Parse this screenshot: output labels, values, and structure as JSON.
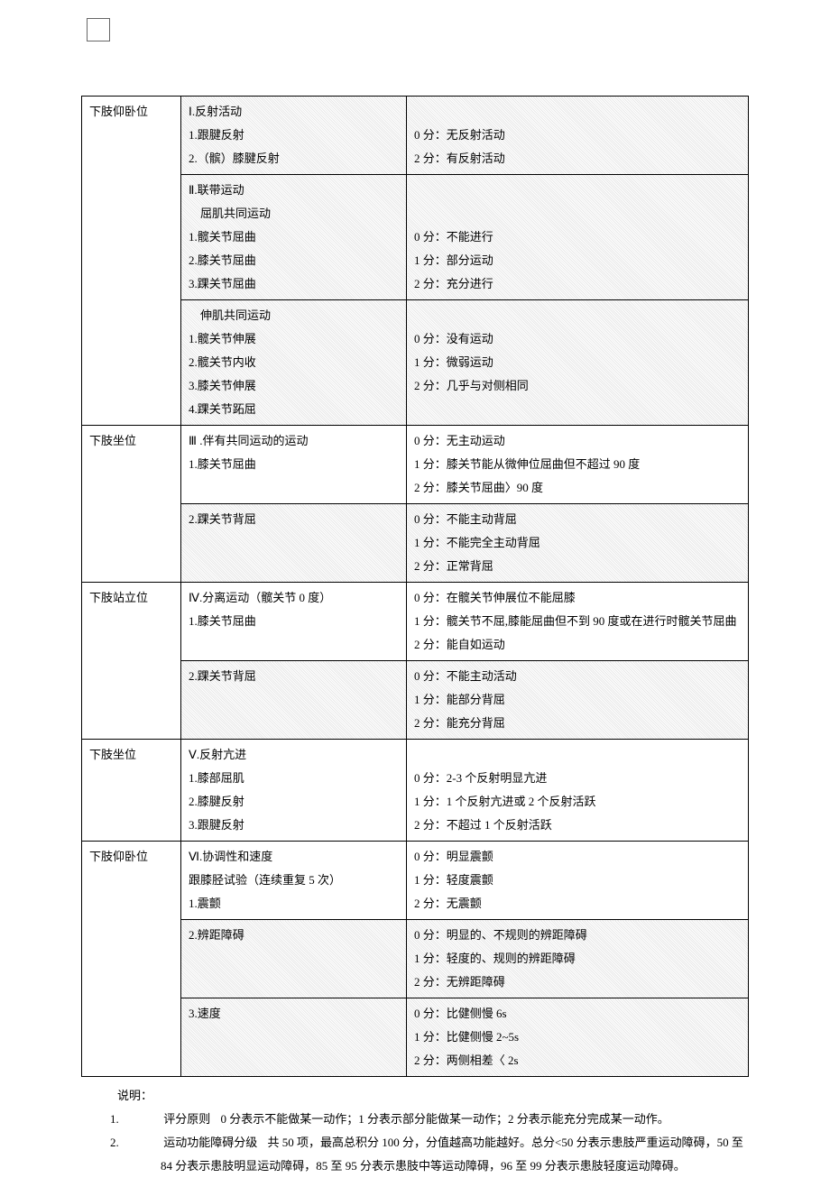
{
  "table": {
    "rows": [
      {
        "col1": "下肢仰卧位",
        "col2": "Ⅰ.反射活动\n1.跟腱反射\n2.（髌）膝腱反射",
        "col3": "\n0 分：无反射活动\n2 分：有反射活动",
        "hatched": true,
        "rowspan1": 3
      },
      {
        "col1": "",
        "col2": "Ⅱ.联带运动\n　屈肌共同运动\n1.髋关节屈曲\n2.膝关节屈曲\n3.踝关节屈曲",
        "col3": "\n\n0 分：不能进行\n1 分：部分运动\n2 分：充分进行",
        "hatched": true
      },
      {
        "col1": "",
        "col2": "　伸肌共同运动\n1.髋关节伸展\n2.髋关节内收\n3.膝关节伸展\n4.踝关节跖屈",
        "col3": "\n0 分：没有运动\n1 分：微弱运动\n2 分：几乎与对侧相同",
        "hatched": true
      },
      {
        "col1": "下肢坐位",
        "col2": "Ⅲ .伴有共同运动的运动\n1.膝关节屈曲",
        "col3": "0 分：无主动运动\n1 分：膝关节能从微伸位屈曲但不超过 90 度\n2 分：膝关节屈曲〉90 度",
        "rowspan1": 2
      },
      {
        "col1": "",
        "col2": "2.踝关节背屈",
        "col3": "0 分：不能主动背屈\n1 分：不能完全主动背屈\n2 分：正常背屈",
        "hatched": true
      },
      {
        "col1": "下肢站立位",
        "col2": "Ⅳ.分离运动（髋关节 0 度）\n1.膝关节屈曲",
        "col3": "0 分：在髋关节伸展位不能屈膝\n1 分：髋关节不屈,膝能屈曲但不到 90 度或在进行时髋关节屈曲\n2 分：能自如运动",
        "rowspan1": 2
      },
      {
        "col1": "",
        "col2": "2.踝关节背屈",
        "col3": "0 分：不能主动活动\n1 分：能部分背屈\n2 分：能充分背屈",
        "hatched": true
      },
      {
        "col1": "下肢坐位",
        "col2": "Ⅴ.反射亢进\n1.膝部屈肌\n2.膝腱反射\n3.跟腱反射",
        "col3": "\n0 分：2-3 个反射明显亢进\n1 分：1 个反射亢进或 2 个反射活跃\n2 分：不超过 1 个反射活跃"
      },
      {
        "col1": "下肢仰卧位",
        "col2": "Ⅵ.协调性和速度\n跟膝胫试验（连续重复 5 次）\n1.震颤",
        "col3": "0 分：明显震颤\n1 分：轻度震颤\n2 分：无震颤",
        "rowspan1": 3
      },
      {
        "col1": "",
        "col2": "2.辨距障碍",
        "col3": "0 分：明显的、不规则的辨距障碍\n1 分：轻度的、规则的辨距障碍\n2 分：无辨距障碍",
        "hatched": true
      },
      {
        "col1": "",
        "col2": "3.速度",
        "col3": "0 分：比健侧慢 6s\n1 分：比健侧慢 2~5s\n2 分：两侧相差〈 2s",
        "hatched": true
      }
    ]
  },
  "notes": {
    "title": "说明：",
    "items": [
      {
        "num": "1.",
        "label": "评分原则",
        "body": "0 分表示不能做某一动作；1 分表示部分能做某一动作；2 分表示能充分完成某一动作。"
      },
      {
        "num": "2.",
        "label": "运动功能障碍分级",
        "body": "共 50 项，最高总积分 100 分，分值越高功能越好。总分<50 分表示患肢严重运动障碍，50 至 84 分表示患肢明显运动障碍，85 至 95 分表示患肢中等运动障碍，96 至 99 分表示患肢轻度运动障碍。"
      }
    ]
  }
}
